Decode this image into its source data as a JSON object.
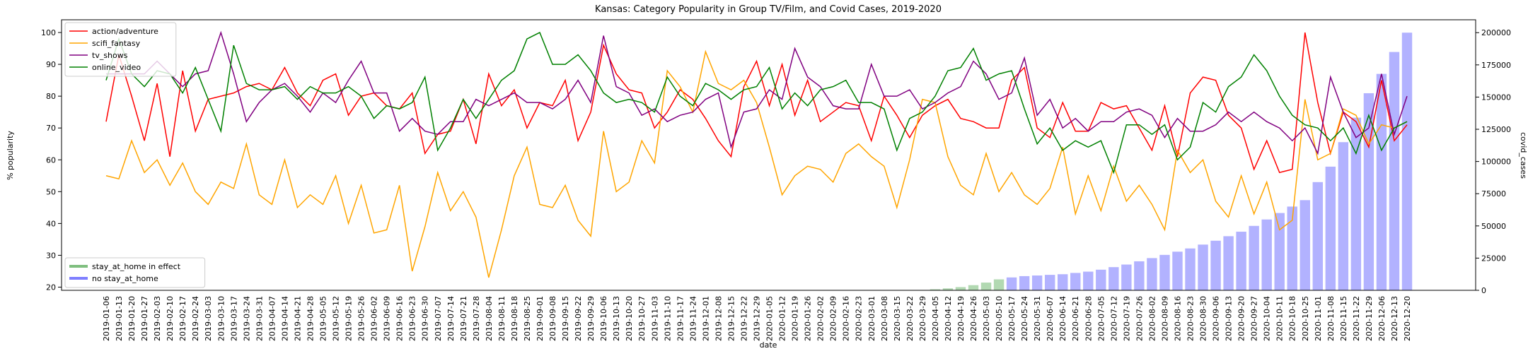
{
  "chart_data": {
    "type": "line",
    "title": "Kansas: Category Popularity in Group TV/Film, and Covid Cases, 2019-2020",
    "xlabel": "date",
    "ylabel": "% popularity",
    "y2label": "covid_cases",
    "legend": "upper left",
    "bar_legend": "lower left",
    "bar_alpha": 0.3,
    "ylim": [
      19,
      104
    ],
    "yticks": [
      20,
      30,
      40,
      50,
      60,
      70,
      80,
      90,
      100
    ],
    "y2lim": [
      0,
      210000
    ],
    "y2ticks": [
      0,
      25000,
      50000,
      75000,
      100000,
      125000,
      150000,
      175000,
      200000
    ],
    "categories": [
      "2019-01-06",
      "2019-01-13",
      "2019-01-20",
      "2019-01-27",
      "2019-02-03",
      "2019-02-10",
      "2019-02-17",
      "2019-02-24",
      "2019-03-03",
      "2019-03-10",
      "2019-03-17",
      "2019-03-24",
      "2019-03-31",
      "2019-04-07",
      "2019-04-14",
      "2019-04-21",
      "2019-04-28",
      "2019-05-05",
      "2019-05-12",
      "2019-05-19",
      "2019-05-26",
      "2019-06-02",
      "2019-06-09",
      "2019-06-16",
      "2019-06-23",
      "2019-06-30",
      "2019-07-07",
      "2019-07-14",
      "2019-07-21",
      "2019-07-28",
      "2019-08-04",
      "2019-08-11",
      "2019-08-18",
      "2019-08-25",
      "2019-09-01",
      "2019-09-08",
      "2019-09-15",
      "2019-09-22",
      "2019-09-29",
      "2019-10-06",
      "2019-10-13",
      "2019-10-20",
      "2019-10-27",
      "2019-11-03",
      "2019-11-10",
      "2019-11-17",
      "2019-11-24",
      "2019-12-01",
      "2019-12-08",
      "2019-12-15",
      "2019-12-22",
      "2019-12-29",
      "2020-01-05",
      "2020-01-12",
      "2020-01-19",
      "2020-01-26",
      "2020-02-02",
      "2020-02-09",
      "2020-02-16",
      "2020-02-23",
      "2020-03-01",
      "2020-03-08",
      "2020-03-15",
      "2020-03-22",
      "2020-03-29",
      "2020-04-05",
      "2020-04-12",
      "2020-04-19",
      "2020-04-26",
      "2020-05-03",
      "2020-05-10",
      "2020-05-17",
      "2020-05-24",
      "2020-05-31",
      "2020-06-07",
      "2020-06-14",
      "2020-06-21",
      "2020-06-28",
      "2020-07-05",
      "2020-07-12",
      "2020-07-19",
      "2020-07-26",
      "2020-08-02",
      "2020-08-09",
      "2020-08-16",
      "2020-08-23",
      "2020-08-30",
      "2020-09-06",
      "2020-09-13",
      "2020-09-20",
      "2020-09-27",
      "2020-10-04",
      "2020-10-11",
      "2020-10-18",
      "2020-10-25",
      "2020-11-01",
      "2020-11-08",
      "2020-11-15",
      "2020-11-22",
      "2020-11-29",
      "2020-12-06",
      "2020-12-13",
      "2020-12-20"
    ],
    "series": [
      {
        "name": "action/adventure",
        "color": "#ff0000",
        "values": [
          72,
          93,
          80,
          66,
          84,
          61,
          88,
          69,
          79,
          80,
          81,
          83,
          84,
          82,
          89,
          81,
          77,
          85,
          87,
          74,
          80,
          81,
          77,
          76,
          81,
          62,
          68,
          69,
          79,
          65,
          87,
          77,
          82,
          70,
          78,
          77,
          85,
          66,
          75,
          96,
          87,
          82,
          81,
          70,
          75,
          82,
          79,
          73,
          66,
          61,
          83,
          91,
          77,
          90,
          74,
          85,
          72,
          75,
          78,
          77,
          66,
          80,
          74,
          67,
          74,
          77,
          79,
          73,
          72,
          70,
          70,
          85,
          89,
          70,
          67,
          78,
          69,
          69,
          78,
          76,
          77,
          70,
          63,
          77,
          61,
          81,
          86,
          85,
          74,
          70,
          57,
          66,
          56,
          57,
          100,
          78,
          62,
          75,
          72,
          64,
          85,
          66,
          71
        ]
      },
      {
        "name": "scifi_fantasy",
        "color": "#ffa500",
        "values": [
          55,
          54,
          66,
          56,
          60,
          52,
          59,
          50,
          46,
          53,
          51,
          65,
          49,
          46,
          60,
          45,
          49,
          46,
          55,
          40,
          52,
          37,
          38,
          52,
          25,
          39,
          56,
          44,
          50,
          42,
          23,
          38,
          55,
          64,
          46,
          45,
          52,
          41,
          36,
          69,
          50,
          53,
          66,
          59,
          88,
          83,
          75,
          94,
          84,
          82,
          85,
          78,
          64,
          49,
          55,
          58,
          57,
          53,
          62,
          65,
          61,
          58,
          45,
          60,
          79,
          78,
          61,
          52,
          49,
          62,
          50,
          56,
          49,
          46,
          51,
          64,
          43,
          55,
          44,
          58,
          47,
          52,
          46,
          38,
          63,
          56,
          60,
          47,
          42,
          55,
          43,
          53,
          38,
          41,
          79,
          60,
          62,
          76,
          74,
          65,
          71,
          70,
          72
        ]
      },
      {
        "name": "tv_shows",
        "color": "#800080",
        "values": [
          87,
          87,
          87,
          87,
          91,
          87,
          83,
          87,
          88,
          100,
          87,
          72,
          78,
          82,
          84,
          80,
          75,
          81,
          78,
          85,
          91,
          81,
          81,
          69,
          73,
          69,
          68,
          72,
          72,
          79,
          77,
          79,
          81,
          78,
          78,
          76,
          79,
          85,
          78,
          99,
          83,
          81,
          74,
          76,
          72,
          74,
          75,
          79,
          81,
          64,
          75,
          76,
          82,
          79,
          95,
          86,
          83,
          77,
          76,
          76,
          90,
          80,
          80,
          82,
          76,
          78,
          81,
          83,
          91,
          87,
          79,
          81,
          92,
          74,
          79,
          70,
          73,
          69,
          72,
          72,
          75,
          76,
          74,
          67,
          73,
          69,
          69,
          71,
          75,
          72,
          75,
          72,
          70,
          66,
          70,
          62,
          86,
          75,
          67,
          70,
          87,
          68,
          80
        ]
      },
      {
        "name": "online_video",
        "color": "#008000",
        "values": [
          85,
          98,
          87,
          83,
          88,
          87,
          81,
          89,
          79,
          69,
          96,
          84,
          82,
          82,
          83,
          79,
          83,
          81,
          81,
          83,
          80,
          73,
          77,
          76,
          78,
          86,
          63,
          70,
          79,
          73,
          79,
          85,
          88,
          98,
          100,
          90,
          90,
          93,
          88,
          81,
          78,
          79,
          78,
          75,
          86,
          80,
          77,
          84,
          82,
          79,
          82,
          83,
          89,
          76,
          81,
          77,
          82,
          83,
          85,
          78,
          78,
          76,
          63,
          73,
          75,
          80,
          88,
          89,
          95,
          85,
          87,
          88,
          76,
          65,
          70,
          63,
          66,
          64,
          66,
          56,
          71,
          71,
          68,
          71,
          60,
          64,
          78,
          75,
          83,
          86,
          93,
          88,
          80,
          74,
          71,
          70,
          66,
          70,
          62,
          74,
          63,
          70,
          72
        ]
      },
      {
        "name": "stay_at_home in effect",
        "type": "bar",
        "axis": "y2",
        "color": "#008000",
        "values": [
          null,
          null,
          null,
          null,
          null,
          null,
          null,
          null,
          null,
          null,
          null,
          null,
          null,
          null,
          null,
          null,
          null,
          null,
          null,
          null,
          null,
          null,
          null,
          null,
          null,
          null,
          null,
          null,
          null,
          null,
          null,
          null,
          null,
          null,
          null,
          null,
          null,
          null,
          null,
          null,
          null,
          null,
          null,
          null,
          null,
          null,
          null,
          null,
          null,
          null,
          null,
          null,
          null,
          null,
          null,
          null,
          null,
          null,
          null,
          null,
          null,
          null,
          null,
          null,
          null,
          800,
          1500,
          2500,
          4000,
          6000,
          8500,
          null,
          null,
          null,
          null,
          null,
          null,
          null,
          null,
          null,
          null,
          null,
          null,
          null,
          null,
          null,
          null,
          null,
          null,
          null,
          null,
          null,
          null,
          null,
          null,
          null,
          null,
          null,
          null,
          null,
          null,
          null,
          null
        ]
      },
      {
        "name": "no stay_at_home",
        "type": "bar",
        "axis": "y2",
        "color": "#0000ff",
        "values": [
          null,
          null,
          null,
          null,
          null,
          null,
          null,
          null,
          null,
          null,
          null,
          null,
          null,
          null,
          null,
          null,
          null,
          null,
          null,
          null,
          null,
          null,
          null,
          null,
          null,
          null,
          null,
          null,
          null,
          null,
          null,
          null,
          null,
          null,
          null,
          null,
          null,
          null,
          null,
          null,
          null,
          null,
          null,
          null,
          null,
          null,
          null,
          null,
          null,
          null,
          null,
          null,
          null,
          null,
          null,
          null,
          null,
          null,
          null,
          null,
          null,
          null,
          null,
          null,
          null,
          null,
          null,
          null,
          null,
          null,
          null,
          10000,
          11000,
          11500,
          12000,
          12500,
          13500,
          14500,
          16000,
          18000,
          20000,
          22500,
          25000,
          27500,
          30000,
          32500,
          35500,
          38500,
          42000,
          45500,
          50000,
          55000,
          60000,
          65000,
          70000,
          84000,
          96000,
          115000,
          134000,
          153000,
          168000,
          185000,
          200000
        ]
      }
    ]
  }
}
